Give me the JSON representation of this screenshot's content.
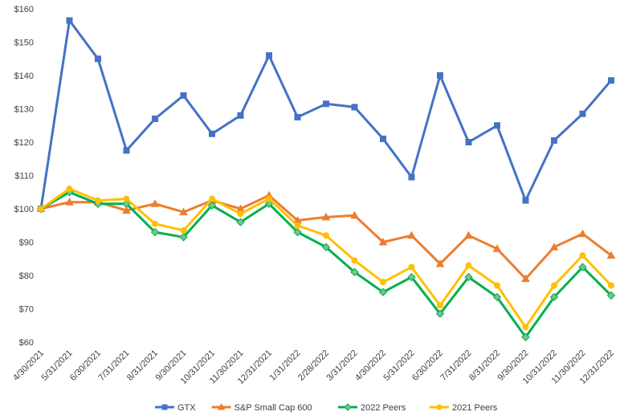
{
  "chart_data": {
    "type": "line",
    "categories": [
      "4/30/2021",
      "5/31/2021",
      "6/30/2021",
      "7/31/2021",
      "8/31/2021",
      "9/30/2021",
      "10/31/2021",
      "11/30/2021",
      "12/31/2021",
      "1/31/2022",
      "2/28/2022",
      "3/31/2022",
      "4/30/2022",
      "5/31/2022",
      "6/30/2022",
      "7/31/2022",
      "8/31/2022",
      "9/30/2022",
      "10/31/2022",
      "11/30/2022",
      "12/31/2022"
    ],
    "y_ticks": [
      "$60",
      "$70",
      "$80",
      "$90",
      "$100",
      "$110",
      "$120",
      "$130",
      "$140",
      "$150",
      "$160"
    ],
    "ylim": [
      60,
      160
    ],
    "grid": false,
    "legend": "bottom",
    "series": [
      {
        "name": "GTX",
        "color": "#4472c4",
        "marker": "square",
        "values": [
          100,
          156.5,
          145,
          117.5,
          127,
          134,
          122.5,
          128,
          146,
          127.5,
          131.5,
          130.5,
          121,
          109.5,
          140,
          120,
          125,
          102.5,
          120.5,
          128.5,
          138.5
        ]
      },
      {
        "name": "S&P Small Cap 600",
        "color": "#ed7d31",
        "marker": "triangle",
        "values": [
          100,
          102,
          102,
          99.5,
          101.5,
          99,
          102.5,
          100,
          104,
          96.5,
          97.5,
          98,
          90,
          92,
          83.5,
          92,
          88,
          79,
          88.5,
          92.5,
          86
        ]
      },
      {
        "name": "2022 Peers",
        "color": "#00b050",
        "marker": "diamond",
        "markerFill": "#7fbf8e",
        "values": [
          100,
          105,
          101.5,
          101.5,
          93,
          91.5,
          101,
          96,
          101.5,
          93,
          88.5,
          81,
          75,
          79.5,
          68.5,
          79.5,
          73.5,
          61.5,
          73.5,
          82.5,
          74
        ]
      },
      {
        "name": "2021 Peers",
        "color": "#ffc000",
        "marker": "circle",
        "values": [
          100,
          106,
          102.5,
          103,
          95.5,
          93.5,
          103,
          98.5,
          103,
          95,
          92,
          84.5,
          78,
          82.5,
          71,
          83,
          77,
          64.5,
          77,
          86,
          77
        ]
      }
    ]
  }
}
